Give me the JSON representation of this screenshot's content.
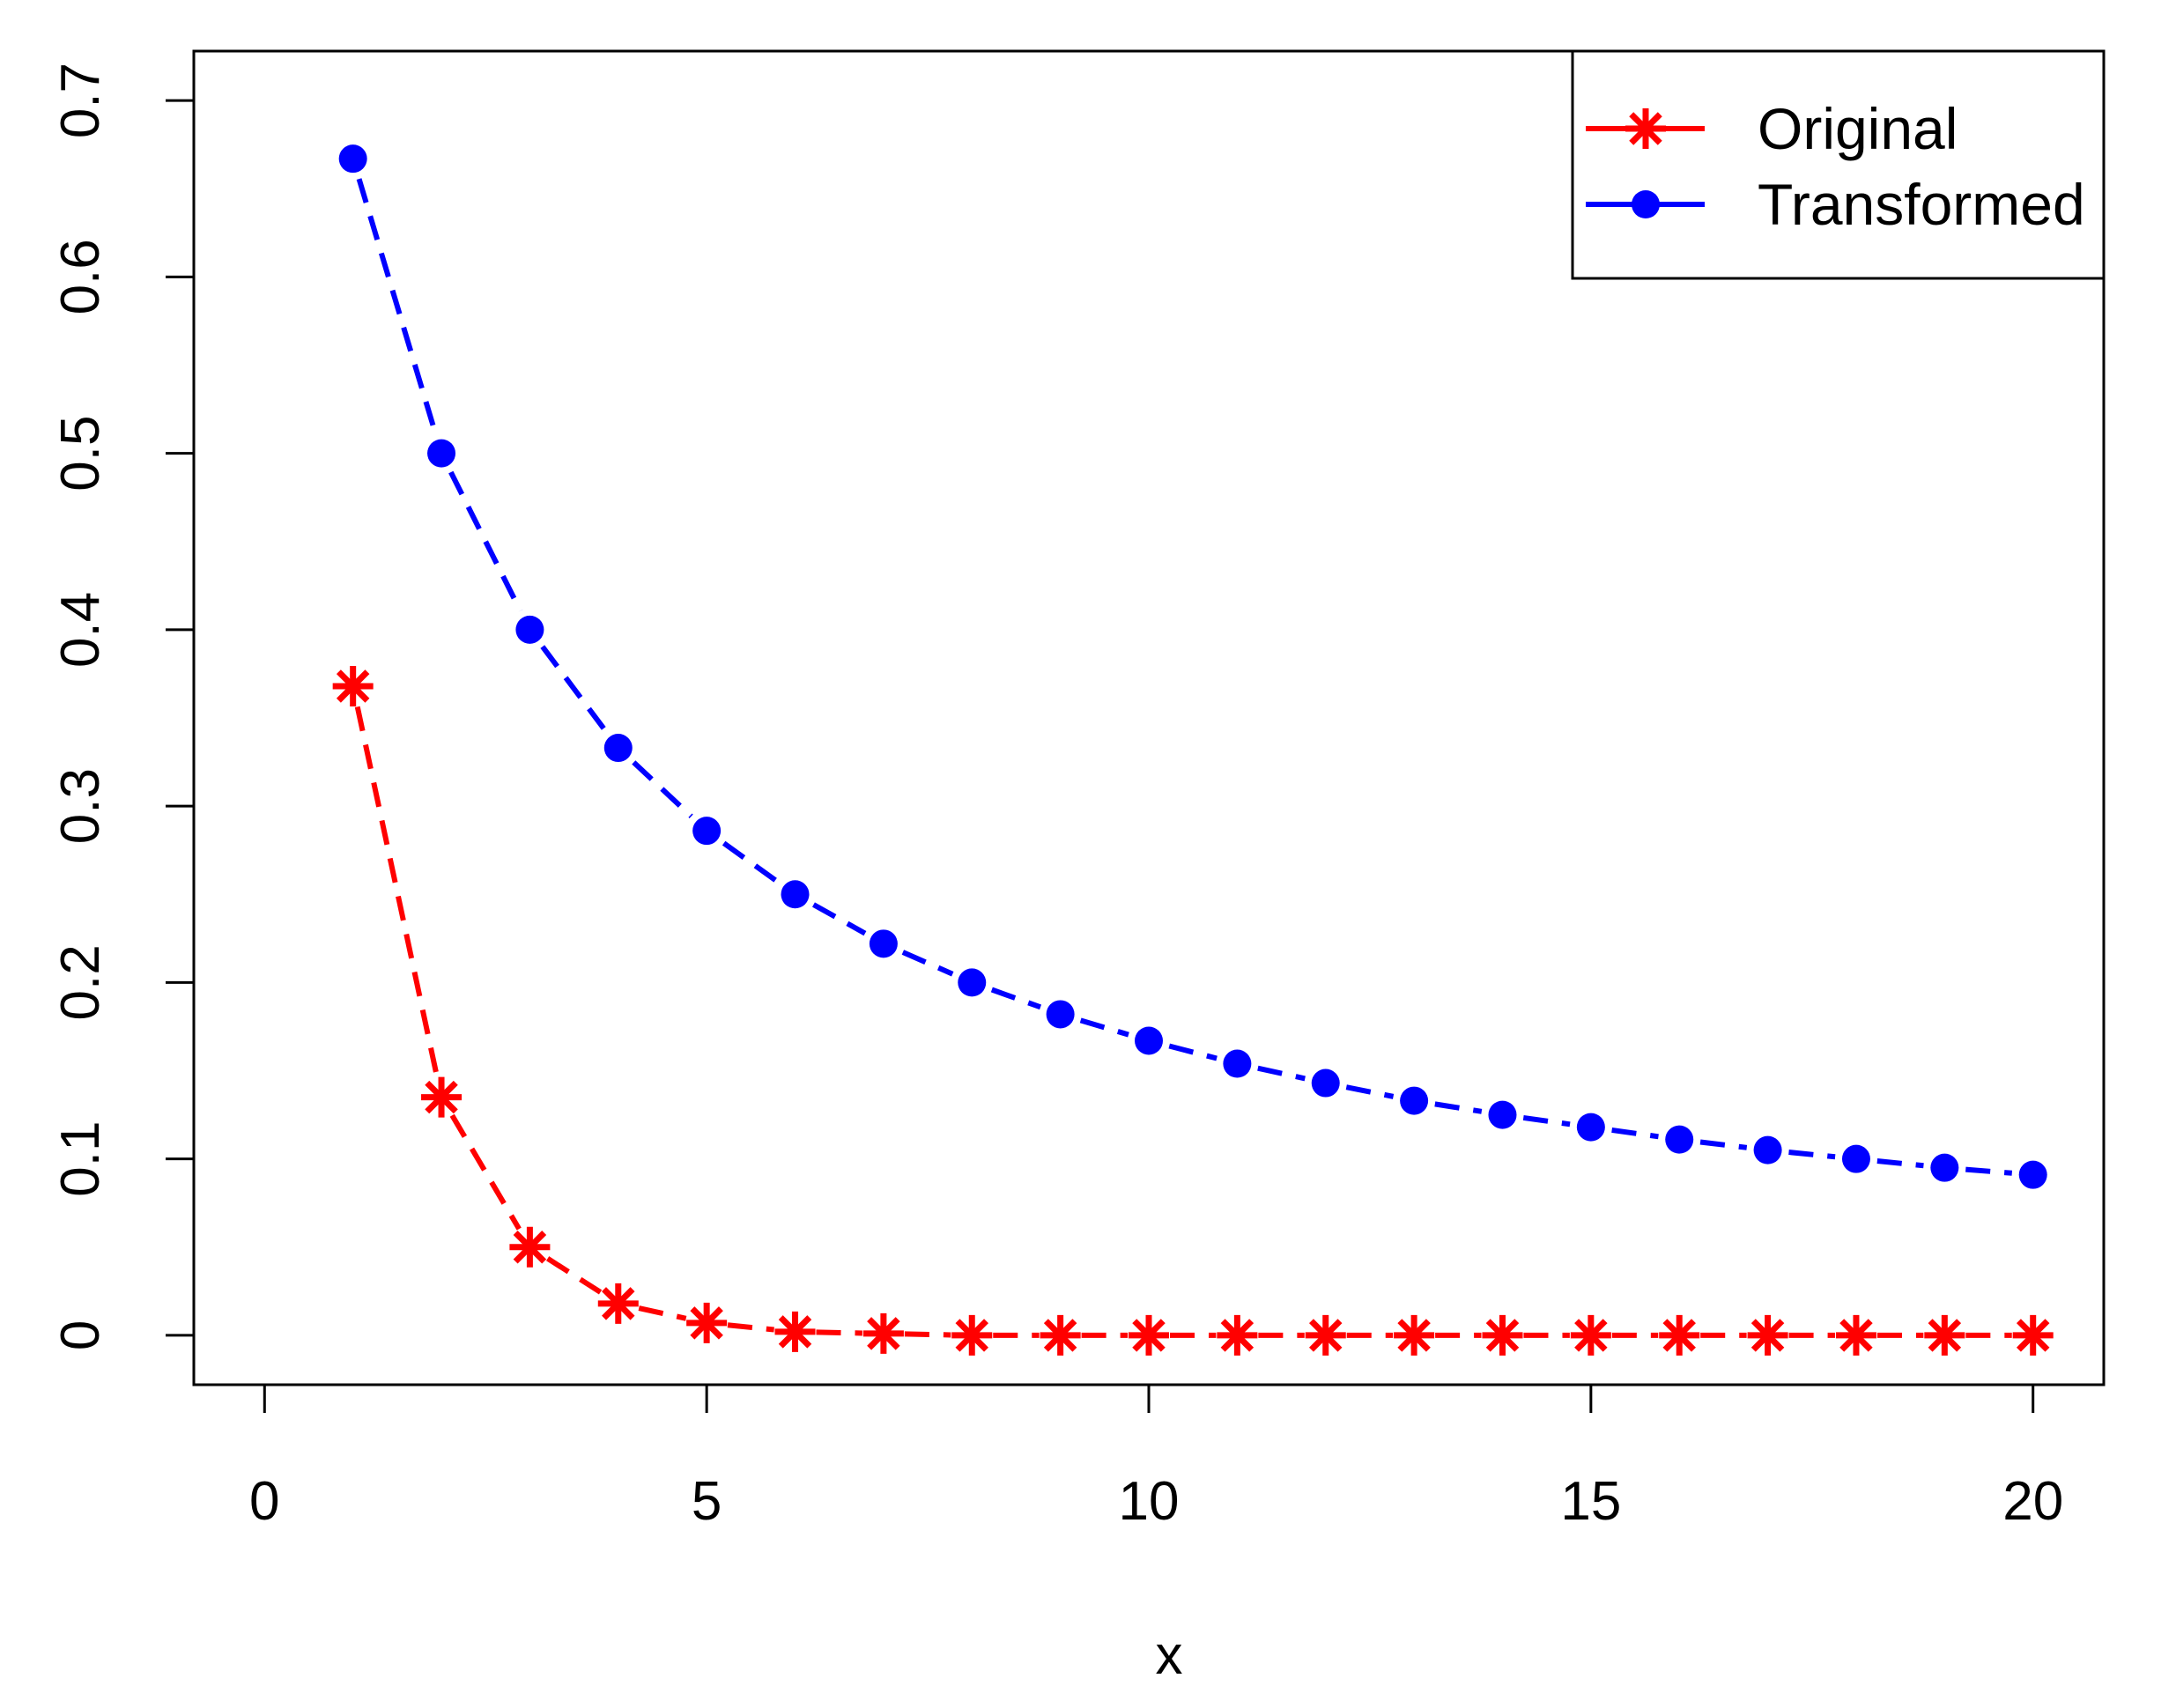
{
  "chart_data": {
    "type": "line",
    "xlabel": "x",
    "ylabel": "",
    "xlim": [
      -0.8,
      20.8
    ],
    "ylim": [
      -0.028,
      0.728
    ],
    "x_ticks": [
      0,
      5,
      10,
      15,
      20
    ],
    "x_tick_labels": [
      "0",
      "5",
      "10",
      "15",
      "20"
    ],
    "y_ticks": [
      0,
      0.1,
      0.2,
      0.3,
      0.4,
      0.5,
      0.6,
      0.7
    ],
    "y_tick_labels": [
      "0",
      "0.1",
      "0.2",
      "0.3",
      "0.4",
      "0.5",
      "0.6",
      "0.7"
    ],
    "grid": false,
    "legend_position": "top-right",
    "x": [
      1,
      2,
      3,
      4,
      5,
      6,
      7,
      8,
      9,
      10,
      11,
      12,
      13,
      14,
      15,
      16,
      17,
      18,
      19,
      20
    ],
    "series": [
      {
        "name": "Original",
        "color": "#ff0000",
        "marker": "asterisk",
        "line_style": "dashed",
        "values": [
          0.368,
          0.135,
          0.05,
          0.018,
          0.007,
          0.002,
          0.001,
          0.0,
          0.0,
          0.0,
          0.0,
          0.0,
          0.0,
          0.0,
          0.0,
          0.0,
          0.0,
          0.0,
          0.0,
          0.0
        ]
      },
      {
        "name": "Transformed",
        "color": "#0000ff",
        "marker": "filled-circle",
        "line_style": "dashed",
        "values": [
          0.667,
          0.5,
          0.4,
          0.333,
          0.286,
          0.25,
          0.222,
          0.2,
          0.182,
          0.167,
          0.154,
          0.143,
          0.133,
          0.125,
          0.118,
          0.111,
          0.105,
          0.1,
          0.095,
          0.091
        ]
      }
    ]
  }
}
